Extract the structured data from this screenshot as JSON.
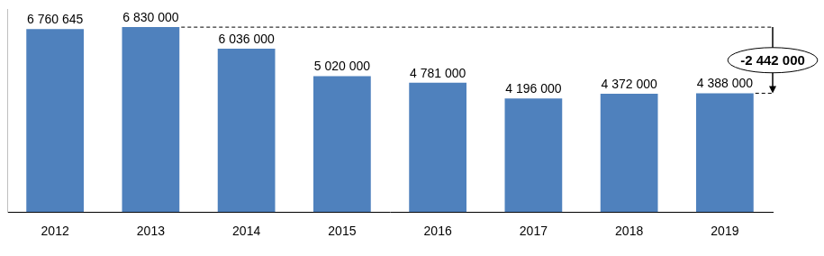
{
  "chart_data": {
    "type": "bar",
    "categories": [
      "2012",
      "2013",
      "2014",
      "2015",
      "2016",
      "2017",
      "2018",
      "2019"
    ],
    "values": [
      6760645,
      6830000,
      6036000,
      5020000,
      4781000,
      4196000,
      4372000,
      4388000
    ],
    "value_labels": [
      "6 760 645",
      "6 830 000",
      "6 036 000",
      "5 020 000",
      "4 781 000",
      "4 196 000",
      "4 372 000",
      "4 388 000"
    ],
    "color": "#4f81bd",
    "ylim": [
      0,
      7500000
    ],
    "grid": false,
    "data_labels": true,
    "tick_labels": "x",
    "annotation": {
      "text": "-2 442 000",
      "value": -2442000,
      "from": "2013",
      "to": "2019"
    }
  }
}
